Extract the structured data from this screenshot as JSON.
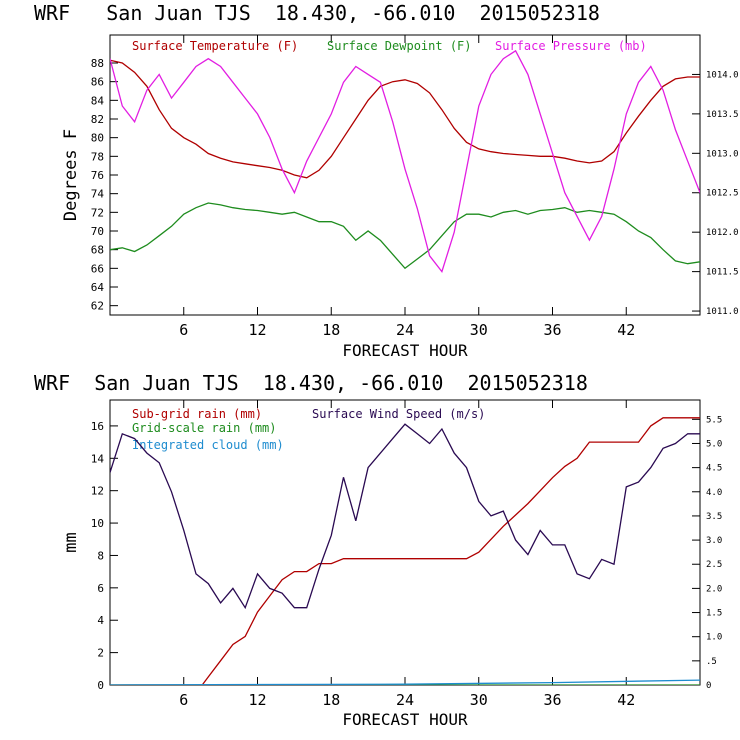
{
  "chart_data": [
    {
      "type": "line",
      "title": "WRF   San Juan TJS  18.430, -66.010  2015052318",
      "xlabel": "FORECAST HOUR",
      "ylabel": "Degrees F",
      "xlim": [
        0,
        48
      ],
      "ylim": [
        61,
        91
      ],
      "y2lim": [
        1010.95,
        1014.5
      ],
      "xticks": [
        6,
        12,
        18,
        24,
        30,
        36,
        42
      ],
      "yticks": [
        62,
        64,
        66,
        68,
        70,
        72,
        74,
        76,
        78,
        80,
        82,
        84,
        86,
        88
      ],
      "y2ticks": [
        1011.0,
        1011.5,
        1012.0,
        1012.5,
        1013.0,
        1013.5,
        1014.0
      ],
      "y2tick_labels": [
        "1011.0",
        "1011.5",
        "1012.0",
        "1012.5",
        "1013.0",
        "1013.5",
        "1014.0"
      ],
      "grid": false,
      "legend_position": "top",
      "series": [
        {
          "name": "Surface Temperature (F)",
          "axis": "left",
          "color": "#b00000",
          "x": [
            0,
            1,
            2,
            3,
            4,
            5,
            6,
            7,
            8,
            9,
            10,
            11,
            12,
            13,
            14,
            15,
            16,
            17,
            18,
            19,
            20,
            21,
            22,
            23,
            24,
            25,
            26,
            27,
            28,
            29,
            30,
            31,
            32,
            33,
            34,
            35,
            36,
            37,
            38,
            39,
            40,
            41,
            42,
            43,
            44,
            45,
            46,
            47,
            48
          ],
          "y": [
            88.3,
            88,
            87,
            85.5,
            83,
            81,
            80,
            79.3,
            78.3,
            77.8,
            77.4,
            77.2,
            77,
            76.8,
            76.5,
            76,
            75.7,
            76.5,
            78,
            80,
            82,
            84,
            85.5,
            86,
            86.2,
            85.8,
            84.8,
            83,
            81,
            79.5,
            78.8,
            78.5,
            78.3,
            78.2,
            78.1,
            78,
            78,
            77.8,
            77.5,
            77.3,
            77.5,
            78.5,
            80.5,
            82.3,
            84,
            85.5,
            86.3,
            86.5,
            86.5
          ]
        },
        {
          "name": "Surface Dewpoint (F)",
          "axis": "left",
          "color": "#1e8c1e",
          "x": [
            0,
            1,
            2,
            3,
            4,
            5,
            6,
            7,
            8,
            9,
            10,
            11,
            12,
            13,
            14,
            15,
            16,
            17,
            18,
            19,
            20,
            21,
            22,
            23,
            24,
            25,
            26,
            27,
            28,
            29,
            30,
            31,
            32,
            33,
            34,
            35,
            36,
            37,
            38,
            39,
            40,
            41,
            42,
            43,
            44,
            45,
            46,
            47,
            48
          ],
          "y": [
            68,
            68.2,
            67.8,
            68.5,
            69.5,
            70.5,
            71.8,
            72.5,
            73,
            72.8,
            72.5,
            72.3,
            72.2,
            72,
            71.8,
            72,
            71.5,
            71,
            71,
            70.5,
            69,
            70,
            69,
            67.5,
            66,
            67,
            68,
            69.5,
            71,
            71.8,
            71.8,
            71.5,
            72,
            72.2,
            71.8,
            72.2,
            72.3,
            72.5,
            72,
            72.2,
            72,
            71.8,
            71,
            70,
            69.3,
            68,
            66.8,
            66.5,
            66.7
          ]
        },
        {
          "name": "Surface Pressure (mb)",
          "axis": "right",
          "color": "#e21ee2",
          "x": [
            0,
            1,
            2,
            3,
            4,
            5,
            6,
            7,
            8,
            9,
            10,
            11,
            12,
            13,
            14,
            15,
            16,
            17,
            18,
            19,
            20,
            21,
            22,
            23,
            24,
            25,
            26,
            27,
            28,
            29,
            30,
            31,
            32,
            33,
            34,
            35,
            36,
            37,
            38,
            39,
            40,
            41,
            42,
            43,
            44,
            45,
            46,
            47,
            48
          ],
          "y": [
            1014.2,
            1013.6,
            1013.4,
            1013.8,
            1014.0,
            1013.7,
            1013.9,
            1014.1,
            1014.2,
            1014.1,
            1013.9,
            1013.7,
            1013.5,
            1013.2,
            1012.8,
            1012.5,
            1012.9,
            1013.2,
            1013.5,
            1013.9,
            1014.1,
            1014.0,
            1013.9,
            1013.4,
            1012.8,
            1012.3,
            1011.7,
            1011.5,
            1012.0,
            1012.8,
            1013.6,
            1014.0,
            1014.2,
            1014.3,
            1014.0,
            1013.5,
            1013.0,
            1012.5,
            1012.2,
            1011.9,
            1012.2,
            1012.8,
            1013.5,
            1013.9,
            1014.1,
            1013.8,
            1013.3,
            1012.9,
            1012.5
          ]
        }
      ]
    },
    {
      "type": "line",
      "title": "WRF  San Juan TJS  18.430, -66.010  2015052318",
      "xlabel": "FORECAST HOUR",
      "ylabel": "mm",
      "xlim": [
        0,
        48
      ],
      "ylim": [
        0,
        17.6
      ],
      "y2lim": [
        0,
        5.9
      ],
      "xticks": [
        6,
        12,
        18,
        24,
        30,
        36,
        42
      ],
      "yticks": [
        0,
        2,
        4,
        6,
        8,
        10,
        12,
        14,
        16
      ],
      "y2ticks": [
        0,
        0.5,
        1.0,
        1.5,
        2.0,
        2.5,
        3.0,
        3.5,
        4.0,
        4.5,
        5.0,
        5.5
      ],
      "y2tick_labels": [
        "0",
        ".5",
        "1.0",
        "1.5",
        "2.0",
        "2.5",
        "3.0",
        "3.5",
        "4.0",
        "4.5",
        "5.0",
        "5.5"
      ],
      "grid": false,
      "legend_position": "top-left",
      "series": [
        {
          "name": "Sub-grid rain (mm)",
          "axis": "left",
          "color": "#b00000",
          "x": [
            0,
            7.5,
            8,
            9,
            10,
            11,
            12,
            13,
            14,
            15,
            16,
            17,
            18,
            19,
            20,
            21,
            22,
            23,
            24,
            25,
            26,
            27,
            28,
            29,
            30,
            31,
            32,
            33,
            34,
            35,
            36,
            37,
            38,
            39,
            40,
            41,
            42,
            43,
            44,
            45,
            46,
            47,
            48
          ],
          "y": [
            0,
            0,
            0.5,
            1.5,
            2.5,
            3,
            4.5,
            5.5,
            6.5,
            7,
            7,
            7.5,
            7.5,
            7.8,
            7.8,
            7.8,
            7.8,
            7.8,
            7.8,
            7.8,
            7.8,
            7.8,
            7.8,
            7.8,
            8.2,
            9,
            9.8,
            10.5,
            11.2,
            12,
            12.8,
            13.5,
            14,
            15,
            15,
            15,
            15,
            15,
            16,
            16.5,
            16.5,
            16.5,
            16.5
          ]
        },
        {
          "name": "Grid-scale rain (mm)",
          "axis": "left",
          "color": "#1e8c1e",
          "x": [
            0,
            48
          ],
          "y": [
            0,
            0
          ]
        },
        {
          "name": "Integrated cloud (mm)",
          "axis": "left",
          "color": "#1e8ccf",
          "x": [
            0,
            12,
            24,
            36,
            48
          ],
          "y": [
            0,
            0.03,
            0.05,
            0.15,
            0.3
          ]
        },
        {
          "name": "Surface Wind Speed (m/s)",
          "axis": "right",
          "color": "#2a0a52",
          "x": [
            0,
            1,
            2,
            3,
            4,
            5,
            6,
            7,
            8,
            9,
            10,
            11,
            12,
            13,
            14,
            15,
            16,
            17,
            18,
            19,
            20,
            21,
            22,
            23,
            24,
            25,
            26,
            27,
            28,
            29,
            30,
            31,
            32,
            33,
            34,
            35,
            36,
            37,
            38,
            39,
            40,
            41,
            42,
            43,
            44,
            45,
            46,
            47,
            48
          ],
          "y": [
            4.4,
            5.2,
            5.1,
            4.8,
            4.6,
            4.0,
            3.2,
            2.3,
            2.1,
            1.7,
            2.0,
            1.6,
            2.3,
            2.0,
            1.9,
            1.6,
            1.6,
            2.4,
            3.1,
            4.3,
            3.4,
            4.5,
            4.8,
            5.1,
            5.4,
            5.2,
            5.0,
            5.3,
            4.8,
            4.5,
            3.8,
            3.5,
            3.6,
            3.0,
            2.7,
            3.2,
            2.9,
            2.9,
            2.3,
            2.2,
            2.6,
            2.5,
            4.1,
            4.2,
            4.5,
            4.9,
            5.0,
            5.2,
            5.2
          ]
        }
      ]
    }
  ]
}
